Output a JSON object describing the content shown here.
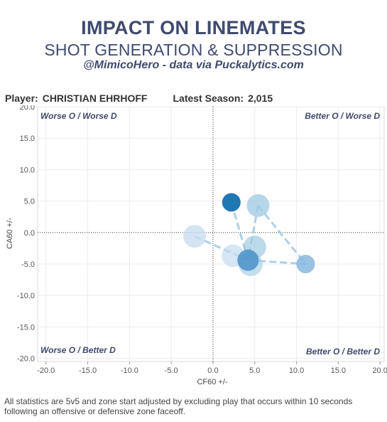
{
  "header": {
    "title": "IMPACT ON LINEMATES",
    "subtitle": "SHOT GENERATION & SUPPRESSION",
    "byline": "@MimicoHero - data via Puckalytics.com"
  },
  "player_info": {
    "player_label": "Player:",
    "player_name": "CHRISTIAN EHRHOFF",
    "season_label": "Latest Season:",
    "season_value": "2,015"
  },
  "footnote": "All statistics are 5v5 and zone start adjusted by excluding play that occurs within 10 seconds following an offensive or defensive zone faceoff.",
  "colors": {
    "accent_dark": "#1f77b4",
    "accent_mid": "#5b9bd0",
    "accent_light": "#c6dbef",
    "title_color": "#3f4a6e"
  },
  "chart_data": {
    "type": "scatter",
    "xlabel": "CF60 +/-",
    "ylabel": "CA60 +/-",
    "xlim": [
      -21,
      20.5
    ],
    "ylim": [
      -20.5,
      20
    ],
    "xticks": [
      -20.0,
      -15.0,
      -10.0,
      -5.0,
      0.0,
      5.0,
      10.0,
      15.0,
      20.0
    ],
    "xtick_labels": [
      "-20.0",
      "-15.0",
      "-10.0",
      "-5.0",
      "0.0",
      "5.0",
      "10.0",
      "15.0",
      "20.0"
    ],
    "yticks": [
      20.0,
      15.0,
      10.0,
      5.0,
      0.0,
      -5.0,
      -10.0,
      -15.0,
      -20.0
    ],
    "ytick_labels": [
      "20.0",
      "15.0",
      "10.0",
      "5.0",
      "0.0",
      "-5.0",
      "-10.0",
      "-15.0",
      "-20.0"
    ],
    "grid": true,
    "quadrant_labels": {
      "top_left": "Worse O / Worse D",
      "top_right": "Better O / Worse D",
      "bottom_left": "Worse O / Better D",
      "bottom_right": "Better O / Better D"
    },
    "points": [
      {
        "x": -2.2,
        "y": -0.6,
        "color": "#c6dbef",
        "opacity": 0.75,
        "size": 16
      },
      {
        "x": 2.2,
        "y": 4.8,
        "color": "#1f77b4",
        "opacity": 1.0,
        "size": 13
      },
      {
        "x": 5.4,
        "y": 4.3,
        "color": "#9ecae1",
        "opacity": 0.75,
        "size": 16
      },
      {
        "x": 5.0,
        "y": -2.3,
        "color": "#9ecae1",
        "opacity": 0.7,
        "size": 16
      },
      {
        "x": 2.4,
        "y": -3.7,
        "color": "#c6dbef",
        "opacity": 0.7,
        "size": 16
      },
      {
        "x": 4.5,
        "y": -5.0,
        "color": "#9ecae1",
        "opacity": 0.6,
        "size": 17
      },
      {
        "x": 4.2,
        "y": -4.4,
        "color": "#4a90c8",
        "opacity": 0.85,
        "size": 15
      },
      {
        "x": 11.1,
        "y": -5.0,
        "color": "#7fb3dc",
        "opacity": 0.8,
        "size": 13
      }
    ],
    "links": [
      {
        "x1": -2.2,
        "y1": -0.6,
        "x2": 4.2,
        "y2": -4.4
      },
      {
        "x1": 2.2,
        "y1": 4.8,
        "x2": 4.2,
        "y2": -4.4
      },
      {
        "x1": 5.4,
        "y1": 4.3,
        "x2": 4.2,
        "y2": -4.4
      },
      {
        "x1": 5.4,
        "y1": 4.3,
        "x2": 11.1,
        "y2": -5.0
      },
      {
        "x1": 4.2,
        "y1": -4.4,
        "x2": 11.1,
        "y2": -5.0
      }
    ]
  }
}
